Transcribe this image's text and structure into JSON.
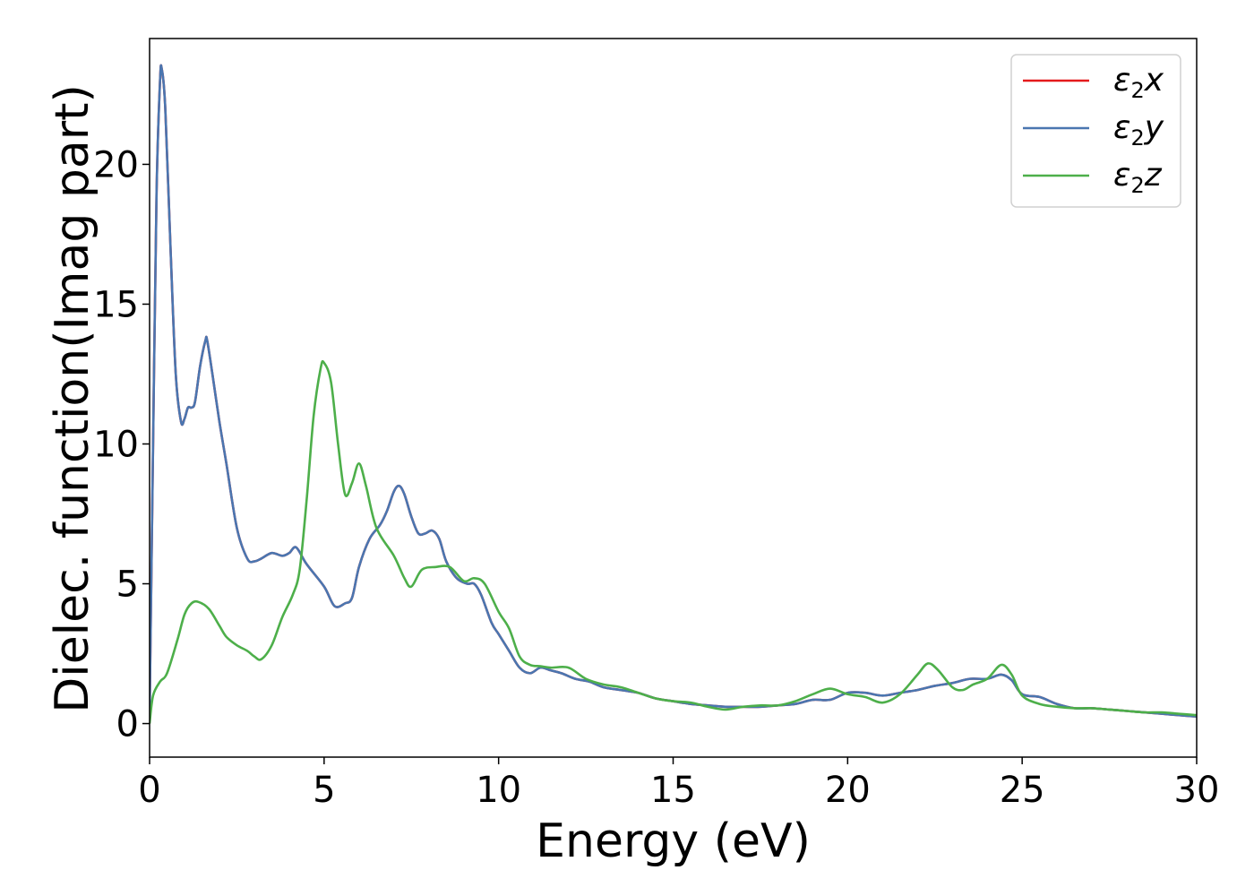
{
  "chart_data": {
    "type": "line",
    "title": "",
    "xlabel": "Energy (eV)",
    "ylabel": "Dielec. function(Imag part)",
    "xlim": [
      0,
      30
    ],
    "ylim": [
      -1.2,
      24.5
    ],
    "xticks": [
      0,
      5,
      10,
      15,
      20,
      25,
      30
    ],
    "yticks": [
      0,
      5,
      10,
      15,
      20
    ],
    "grid": false,
    "legend_position": "top-right",
    "series": [
      {
        "name": "ε2x",
        "legend": {
          "main": "ε",
          "sub": "2",
          "axis": "x"
        },
        "color": "#e41a1c",
        "x": [
          0,
          0.1,
          0.2,
          0.3,
          0.35,
          0.45,
          0.6,
          0.75,
          0.9,
          1.0,
          1.1,
          1.2,
          1.3,
          1.45,
          1.6,
          1.65,
          1.8,
          2.0,
          2.2,
          2.5,
          2.8,
          3.0,
          3.2,
          3.5,
          3.8,
          4.0,
          4.2,
          4.5,
          5.0,
          5.3,
          5.6,
          5.8,
          6.0,
          6.3,
          6.6,
          6.8,
          7.0,
          7.15,
          7.3,
          7.5,
          7.7,
          7.9,
          8.1,
          8.3,
          8.5,
          8.8,
          9.1,
          9.3,
          9.5,
          9.8,
          10.0,
          10.3,
          10.6,
          10.9,
          11.2,
          11.5,
          11.8,
          12.2,
          12.6,
          13.0,
          13.5,
          14.0,
          14.5,
          15.0,
          15.5,
          16.0,
          16.5,
          17.0,
          17.5,
          18.0,
          18.5,
          19.0,
          19.5,
          20.0,
          20.5,
          21.0,
          21.5,
          22.0,
          22.5,
          23.0,
          23.5,
          24.0,
          24.4,
          24.7,
          25.0,
          25.5,
          26.0,
          26.5,
          27.0,
          27.5,
          28.0,
          28.5,
          29.0,
          29.5,
          30.0
        ],
        "y": [
          0.3,
          10.0,
          19.0,
          23.0,
          23.4,
          22.0,
          17.0,
          12.5,
          10.8,
          10.9,
          11.3,
          11.3,
          11.5,
          12.8,
          13.7,
          13.7,
          12.5,
          10.8,
          9.3,
          7.0,
          5.9,
          5.8,
          5.9,
          6.1,
          6.0,
          6.1,
          6.3,
          5.7,
          4.9,
          4.2,
          4.3,
          4.5,
          5.6,
          6.6,
          7.1,
          7.6,
          8.3,
          8.5,
          8.2,
          7.4,
          6.8,
          6.8,
          6.9,
          6.6,
          5.8,
          5.2,
          5.0,
          5.0,
          4.6,
          3.6,
          3.2,
          2.6,
          2.0,
          1.8,
          2.0,
          1.9,
          1.8,
          1.6,
          1.5,
          1.3,
          1.2,
          1.1,
          0.9,
          0.8,
          0.7,
          0.65,
          0.6,
          0.6,
          0.6,
          0.65,
          0.7,
          0.85,
          0.85,
          1.1,
          1.1,
          1.0,
          1.1,
          1.2,
          1.35,
          1.45,
          1.6,
          1.6,
          1.75,
          1.55,
          1.05,
          0.95,
          0.7,
          0.55,
          0.55,
          0.5,
          0.45,
          0.4,
          0.35,
          0.3,
          0.25
        ]
      },
      {
        "name": "ε2y",
        "legend": {
          "main": "ε",
          "sub": "2",
          "axis": "y"
        },
        "color": "#4a76b0",
        "x": [
          0,
          0.1,
          0.2,
          0.3,
          0.35,
          0.45,
          0.6,
          0.75,
          0.9,
          1.0,
          1.1,
          1.2,
          1.3,
          1.45,
          1.6,
          1.65,
          1.8,
          2.0,
          2.2,
          2.5,
          2.8,
          3.0,
          3.2,
          3.5,
          3.8,
          4.0,
          4.2,
          4.5,
          5.0,
          5.3,
          5.6,
          5.8,
          6.0,
          6.3,
          6.6,
          6.8,
          7.0,
          7.15,
          7.3,
          7.5,
          7.7,
          7.9,
          8.1,
          8.3,
          8.5,
          8.8,
          9.1,
          9.3,
          9.5,
          9.8,
          10.0,
          10.3,
          10.6,
          10.9,
          11.2,
          11.5,
          11.8,
          12.2,
          12.6,
          13.0,
          13.5,
          14.0,
          14.5,
          15.0,
          15.5,
          16.0,
          16.5,
          17.0,
          17.5,
          18.0,
          18.5,
          19.0,
          19.5,
          20.0,
          20.5,
          21.0,
          21.5,
          22.0,
          22.5,
          23.0,
          23.5,
          24.0,
          24.4,
          24.7,
          25.0,
          25.5,
          26.0,
          26.5,
          27.0,
          27.5,
          28.0,
          28.5,
          29.0,
          29.5,
          30.0
        ],
        "y": [
          0.3,
          10.0,
          19.0,
          23.0,
          23.4,
          22.0,
          17.0,
          12.5,
          10.8,
          10.9,
          11.3,
          11.3,
          11.5,
          12.8,
          13.7,
          13.7,
          12.5,
          10.8,
          9.3,
          7.0,
          5.9,
          5.8,
          5.9,
          6.1,
          6.0,
          6.1,
          6.3,
          5.7,
          4.9,
          4.2,
          4.3,
          4.5,
          5.6,
          6.6,
          7.1,
          7.6,
          8.3,
          8.5,
          8.2,
          7.4,
          6.8,
          6.8,
          6.9,
          6.6,
          5.8,
          5.2,
          5.0,
          5.0,
          4.6,
          3.6,
          3.2,
          2.6,
          2.0,
          1.8,
          2.0,
          1.9,
          1.8,
          1.6,
          1.5,
          1.3,
          1.2,
          1.1,
          0.9,
          0.8,
          0.7,
          0.65,
          0.6,
          0.6,
          0.6,
          0.65,
          0.7,
          0.85,
          0.85,
          1.1,
          1.1,
          1.0,
          1.1,
          1.2,
          1.35,
          1.45,
          1.6,
          1.6,
          1.75,
          1.55,
          1.05,
          0.95,
          0.7,
          0.55,
          0.55,
          0.5,
          0.45,
          0.4,
          0.35,
          0.3,
          0.25
        ]
      },
      {
        "name": "ε2z",
        "legend": {
          "main": "ε",
          "sub": "2",
          "axis": "z"
        },
        "color": "#4daf4a",
        "x": [
          0,
          0.1,
          0.3,
          0.5,
          0.8,
          1.0,
          1.2,
          1.4,
          1.7,
          2.0,
          2.2,
          2.5,
          2.8,
          3.0,
          3.2,
          3.5,
          3.8,
          4.1,
          4.3,
          4.5,
          4.7,
          4.9,
          5.0,
          5.2,
          5.4,
          5.6,
          5.8,
          6.0,
          6.2,
          6.5,
          7.0,
          7.3,
          7.5,
          7.8,
          8.2,
          8.6,
          9.0,
          9.3,
          9.6,
          10.0,
          10.3,
          10.6,
          10.9,
          11.2,
          11.5,
          12.0,
          12.5,
          13.0,
          13.5,
          14.0,
          14.5,
          15.0,
          15.5,
          16.0,
          16.5,
          17.0,
          17.5,
          18.0,
          18.5,
          19.0,
          19.5,
          20.0,
          20.5,
          21.0,
          21.5,
          22.0,
          22.3,
          22.6,
          23.0,
          23.3,
          23.6,
          24.0,
          24.4,
          24.7,
          25.0,
          25.5,
          26.0,
          26.5,
          27.0,
          27.5,
          28.0,
          28.5,
          29.0,
          29.5,
          30.0
        ],
        "y": [
          0.0,
          1.0,
          1.5,
          1.8,
          3.0,
          3.9,
          4.3,
          4.35,
          4.1,
          3.5,
          3.1,
          2.8,
          2.6,
          2.4,
          2.3,
          2.8,
          3.8,
          4.6,
          5.5,
          8.0,
          11.0,
          12.7,
          12.9,
          12.2,
          10.0,
          8.2,
          8.6,
          9.3,
          8.5,
          7.0,
          6.0,
          5.2,
          4.9,
          5.5,
          5.6,
          5.6,
          5.1,
          5.2,
          5.0,
          4.0,
          3.4,
          2.4,
          2.1,
          2.05,
          2.0,
          2.0,
          1.6,
          1.4,
          1.3,
          1.1,
          0.9,
          0.8,
          0.75,
          0.6,
          0.5,
          0.6,
          0.65,
          0.65,
          0.8,
          1.05,
          1.25,
          1.05,
          0.95,
          0.75,
          1.05,
          1.75,
          2.15,
          1.9,
          1.3,
          1.2,
          1.4,
          1.6,
          2.1,
          1.75,
          1.0,
          0.7,
          0.6,
          0.55,
          0.55,
          0.5,
          0.45,
          0.4,
          0.4,
          0.35,
          0.3
        ]
      }
    ]
  }
}
